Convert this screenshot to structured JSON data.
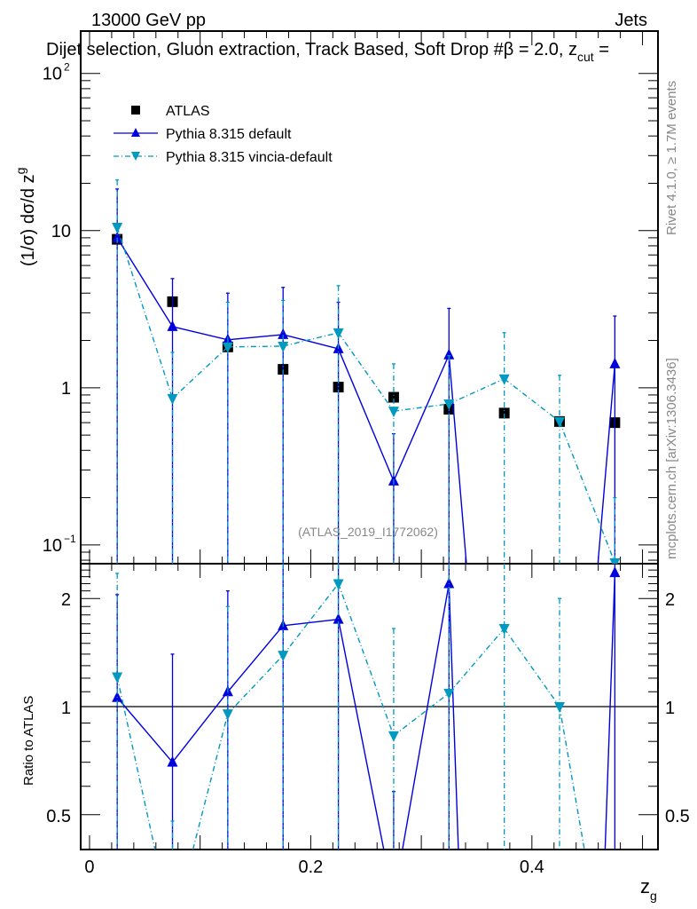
{
  "chart_data": [
    {
      "type": "scatter",
      "panel": "main",
      "header_left": "13000 GeV pp",
      "header_right": "Jets",
      "title": "Dijet selection, Gluon extraction, Track Based, Soft Drop #β = 2.0, z",
      "title_sub": "cut",
      "title_end": " =",
      "ylabel": "(1/σ) dσ/d z",
      "ylabel_sub": "g",
      "yscale": "log",
      "ylim": [
        0.076,
        186
      ],
      "xlim": [
        -0.008,
        0.514
      ],
      "ytick_labels": [
        {
          "v": 100,
          "base": "10",
          "exp": "2"
        },
        {
          "v": 10,
          "base": "10",
          "exp": ""
        },
        {
          "v": 1,
          "base": "1",
          "exp": ""
        },
        {
          "v": 0.1,
          "base": "10",
          "exp": "−1"
        }
      ],
      "watermark": "(ATLAS_2019_I1772062)",
      "side_text_1": "Rivet 4.1.0, ≥ 1.7M events",
      "side_text_2": "mcplots.cern.ch [arXiv:1306.3436]",
      "legend_position": "top-left",
      "x": [
        0.025,
        0.075,
        0.125,
        0.175,
        0.225,
        0.275,
        0.325,
        0.375,
        0.425,
        0.475
      ],
      "series": [
        {
          "name": "ATLAS",
          "marker": "square",
          "color": "#000000",
          "values": [
            8.8,
            3.53,
            1.82,
            1.31,
            1.01,
            0.87,
            0.73,
            0.69,
            0.61,
            0.6
          ]
        },
        {
          "name": "Pythia 8.315 default",
          "marker": "triangle-up",
          "color": "#0000dd",
          "linestyle": "solid",
          "values": [
            9.0,
            2.45,
            2.02,
            2.18,
            1.77,
            0.255,
            1.62,
            0,
            0,
            1.42
          ],
          "err_high": [
            18.4,
            4.95,
            4.0,
            4.35,
            3.5,
            0.51,
            3.2,
            0,
            0,
            2.86
          ],
          "err_low": [
            0,
            0,
            0,
            0,
            0,
            0,
            0,
            0,
            0,
            0
          ]
        },
        {
          "name": "Pythia 8.315 vincia-default",
          "marker": "triangle-down",
          "color": "#0099c0",
          "linestyle": "dashdot",
          "values": [
            10.5,
            0.855,
            1.82,
            1.84,
            2.24,
            0.71,
            0.79,
            1.14,
            0.61,
            0.077
          ],
          "err_high": [
            21,
            1.68,
            3.5,
            3.6,
            4.46,
            1.42,
            1.6,
            2.24,
            1.2,
            0.2
          ],
          "err_low": [
            0,
            0,
            0,
            0,
            0,
            0,
            0,
            0,
            0,
            0
          ]
        }
      ]
    },
    {
      "type": "line",
      "panel": "ratio",
      "ylabel": "Ratio to ATLAS",
      "xlabel": "z",
      "xlabel_sub": "g",
      "yscale": "log",
      "ylim": [
        0.4,
        2.5
      ],
      "xlim": [
        -0.008,
        0.514
      ],
      "yticks": [
        0.5,
        1,
        2
      ],
      "ytick_labels": [
        "0.5",
        "1",
        "2"
      ],
      "xticks": [
        0,
        0.2,
        0.4
      ],
      "xtick_labels": [
        "0",
        "0.2",
        "0.4"
      ],
      "reference": 1,
      "x": [
        0.025,
        0.075,
        0.125,
        0.175,
        0.225,
        0.275,
        0.325,
        0.375,
        0.425,
        0.475
      ],
      "series": [
        {
          "name": "Pythia 8.315 default",
          "marker": "triangle-up",
          "color": "#0000dd",
          "linestyle": "solid",
          "values": [
            1.06,
            0.7,
            1.1,
            1.68,
            1.75,
            0.29,
            2.2,
            0,
            0,
            2.36
          ],
          "err_high": [
            2.05,
            1.4,
            2.1,
            5,
            5,
            0.58,
            5,
            0,
            0,
            5
          ],
          "err_low": [
            0,
            0,
            0,
            0,
            0,
            0,
            0,
            0,
            0,
            0
          ]
        },
        {
          "name": "Pythia 8.315 vincia-default",
          "marker": "triangle-down",
          "color": "#0099c0",
          "linestyle": "dashdot",
          "values": [
            1.21,
            0.24,
            0.955,
            1.39,
            2.2,
            0.83,
            1.09,
            1.65,
            1.0,
            0.13
          ],
          "err_high": [
            2.35,
            0.48,
            1.9,
            5,
            5,
            1.65,
            5,
            5,
            2.0,
            0.3
          ],
          "err_low": [
            0,
            0,
            0,
            0,
            0,
            0,
            0,
            0,
            0,
            0
          ]
        }
      ]
    }
  ]
}
